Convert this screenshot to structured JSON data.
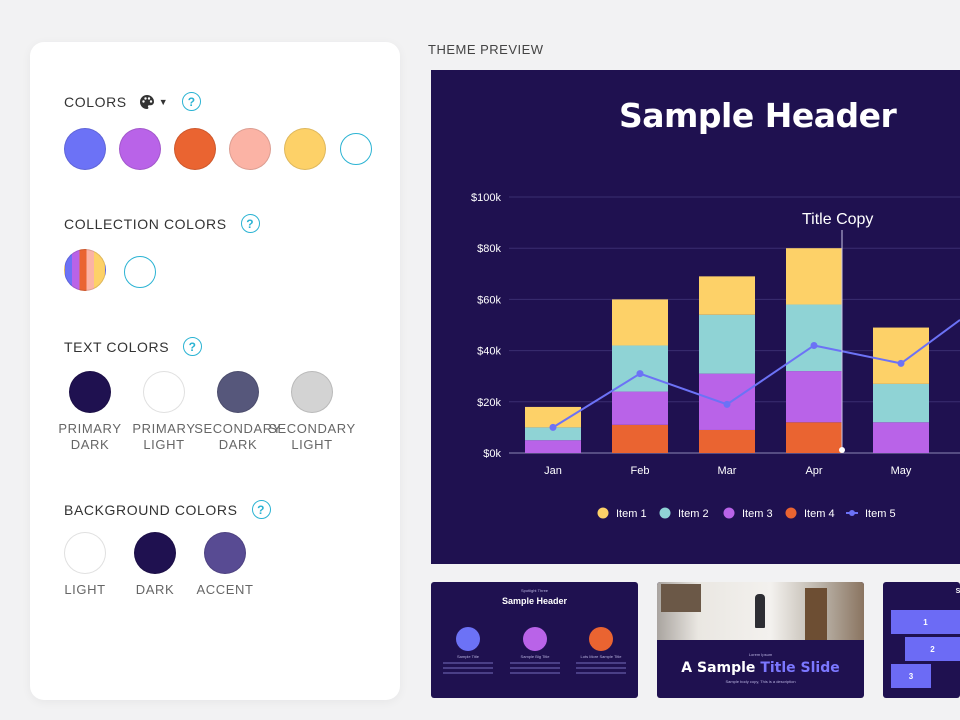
{
  "panel": {
    "colors": {
      "title": "COLORS",
      "help": "?",
      "palette_caret": "▼",
      "swatches": [
        {
          "name": "swatch-blue",
          "color": "#6c72f6"
        },
        {
          "name": "swatch-purple",
          "color": "#b963e8"
        },
        {
          "name": "swatch-orange",
          "color": "#ea6431"
        },
        {
          "name": "swatch-peach",
          "color": "#fbb3a5"
        },
        {
          "name": "swatch-yellow",
          "color": "#fdd168"
        }
      ]
    },
    "collection": {
      "title": "COLLECTION COLORS",
      "help": "?"
    },
    "text_colors": {
      "title": "TEXT COLORS",
      "help": "?",
      "items": [
        {
          "label": "PRIMARY\nDARK",
          "color": "#1f1150"
        },
        {
          "label": "PRIMARY\nLIGHT",
          "color": "#ffffff"
        },
        {
          "label": "SECONDARY\nDARK",
          "color": "#56577b"
        },
        {
          "label": "SECONDARY\nLIGHT",
          "color": "#d3d3d3"
        }
      ]
    },
    "background_colors": {
      "title": "BACKGROUND COLORS",
      "help": "?",
      "items": [
        {
          "label": "LIGHT",
          "color": "#ffffff"
        },
        {
          "label": "DARK",
          "color": "#1f1150"
        },
        {
          "label": "ACCENT",
          "color": "#584b93"
        }
      ]
    }
  },
  "preview": {
    "title": "THEME PREVIEW",
    "slide_header": "Sample Header",
    "thumb1": {
      "kicker": "Spotlight Three",
      "header": "Sample Header",
      "captions": [
        "Sample Title",
        "Sample Big Title",
        "Lots More Sample Title"
      ]
    },
    "thumb2": {
      "kicker": "Lorem Ipsum",
      "title_a": "A Sample ",
      "title_b": "Title Slide",
      "subtitle": "Sample body copy, This is a description"
    },
    "thumb3": {
      "header": "S",
      "steps": [
        "1",
        "2",
        "3"
      ]
    }
  },
  "chart_data": {
    "type": "bar",
    "stacked": true,
    "categories": [
      "Jan",
      "Feb",
      "Mar",
      "Apr",
      "May"
    ],
    "y_ticks": [
      "$0k",
      "$20k",
      "$40k",
      "$60k",
      "$80k",
      "$100k"
    ],
    "ylim": [
      0,
      100
    ],
    "grid": true,
    "legend_position": "bottom",
    "annotation": "Title Copy",
    "series": [
      {
        "name": "Item 4",
        "color": "#ea6431",
        "values": [
          0,
          11,
          9,
          12,
          0
        ]
      },
      {
        "name": "Item 3",
        "color": "#b963e8",
        "values": [
          5,
          13,
          22,
          20,
          12
        ]
      },
      {
        "name": "Item 2",
        "color": "#8fd3d5",
        "values": [
          5,
          18,
          23,
          26,
          15
        ]
      },
      {
        "name": "Item 1",
        "color": "#fdd168",
        "values": [
          8,
          18,
          15,
          22,
          22
        ]
      }
    ],
    "line": {
      "name": "Item 5",
      "color": "#6c72f6",
      "values": [
        10,
        31,
        19,
        42,
        35
      ]
    },
    "legend_order": [
      "Item 1",
      "Item 2",
      "Item 3",
      "Item 4",
      "Item 5"
    ]
  }
}
